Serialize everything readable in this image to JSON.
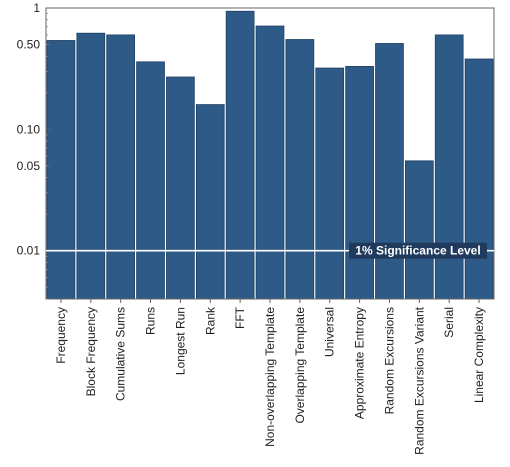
{
  "chart_data": {
    "type": "bar",
    "scale": "log",
    "ylim": [
      0.004,
      1.0
    ],
    "yticks": [
      {
        "value": 1,
        "label": "1"
      },
      {
        "value": 0.5,
        "label": "0.50"
      },
      {
        "value": 0.1,
        "label": "0.10"
      },
      {
        "value": 0.05,
        "label": "0.05"
      },
      {
        "value": 0.01,
        "label": "0.01"
      }
    ],
    "categories": [
      "Frequency",
      "Block Frequency",
      "Cumulative Sums",
      "Runs",
      "Longest Run",
      "Rank",
      "FFT",
      "Non-overlapping Template",
      "Overlapping Template",
      "Universal",
      "Approximate Entropy",
      "Random Excursions",
      "Random Excursions Variant",
      "Serial",
      "Linear Complexity"
    ],
    "values": [
      0.54,
      0.62,
      0.6,
      0.36,
      0.27,
      0.16,
      0.94,
      0.71,
      0.55,
      0.32,
      0.33,
      0.51,
      0.055,
      0.6,
      0.38
    ],
    "reference_line": {
      "value": 0.01,
      "label": "1% Significance Level"
    },
    "bar_color": "#2e5a88",
    "line_color": "#ffffff",
    "grid": false
  }
}
